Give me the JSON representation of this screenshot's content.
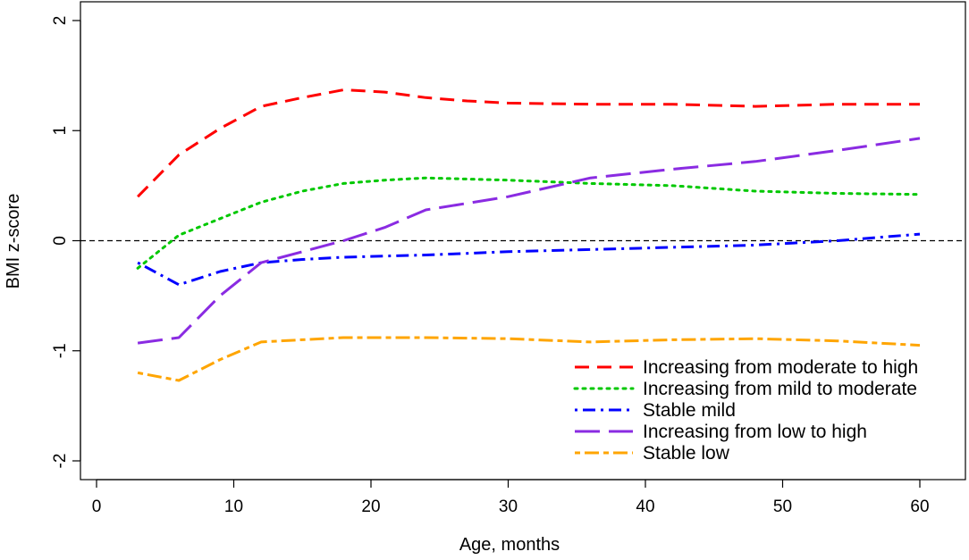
{
  "chart_data": {
    "type": "line",
    "title": "",
    "xlabel": "Age, months",
    "ylabel": "BMI z-score",
    "xlim": [
      0,
      60
    ],
    "ylim": [
      -2,
      2
    ],
    "x_ticks": [
      "0",
      "10",
      "20",
      "30",
      "40",
      "50",
      "60"
    ],
    "y_ticks": [
      "-2",
      "-1",
      "0",
      "1",
      "2"
    ],
    "reference_line_y": 0,
    "legend_position": "bottom-right",
    "series": [
      {
        "name": "Increasing from moderate to high",
        "color": "#ff0000",
        "dash": "dashed",
        "points": [
          [
            3,
            0.4
          ],
          [
            6,
            0.78
          ],
          [
            9,
            1.02
          ],
          [
            12,
            1.22
          ],
          [
            15,
            1.3
          ],
          [
            18,
            1.37
          ],
          [
            21,
            1.35
          ],
          [
            24,
            1.3
          ],
          [
            27,
            1.27
          ],
          [
            30,
            1.25
          ],
          [
            36,
            1.24
          ],
          [
            42,
            1.24
          ],
          [
            48,
            1.22
          ],
          [
            54,
            1.24
          ],
          [
            60,
            1.24
          ]
        ]
      },
      {
        "name": "Increasing from mild to moderate",
        "color": "#00c800",
        "dash": "dotted",
        "points": [
          [
            3,
            -0.25
          ],
          [
            6,
            0.05
          ],
          [
            9,
            0.2
          ],
          [
            12,
            0.35
          ],
          [
            15,
            0.45
          ],
          [
            18,
            0.52
          ],
          [
            21,
            0.55
          ],
          [
            24,
            0.57
          ],
          [
            30,
            0.55
          ],
          [
            36,
            0.52
          ],
          [
            42,
            0.5
          ],
          [
            48,
            0.45
          ],
          [
            54,
            0.43
          ],
          [
            60,
            0.42
          ]
        ]
      },
      {
        "name": "Stable mild",
        "color": "#0000ff",
        "dash": "dotdash",
        "points": [
          [
            3,
            -0.2
          ],
          [
            6,
            -0.4
          ],
          [
            9,
            -0.28
          ],
          [
            12,
            -0.2
          ],
          [
            15,
            -0.17
          ],
          [
            18,
            -0.15
          ],
          [
            24,
            -0.13
          ],
          [
            30,
            -0.1
          ],
          [
            36,
            -0.08
          ],
          [
            42,
            -0.06
          ],
          [
            48,
            -0.04
          ],
          [
            54,
            0.0
          ],
          [
            60,
            0.06
          ]
        ]
      },
      {
        "name": "Increasing from low to high",
        "color": "#8a2be2",
        "dash": "longdash",
        "points": [
          [
            3,
            -0.93
          ],
          [
            6,
            -0.88
          ],
          [
            9,
            -0.5
          ],
          [
            12,
            -0.2
          ],
          [
            15,
            -0.1
          ],
          [
            18,
            0.0
          ],
          [
            21,
            0.12
          ],
          [
            24,
            0.28
          ],
          [
            30,
            0.4
          ],
          [
            36,
            0.57
          ],
          [
            42,
            0.65
          ],
          [
            48,
            0.72
          ],
          [
            54,
            0.82
          ],
          [
            60,
            0.93
          ]
        ]
      },
      {
        "name": "Stable low",
        "color": "#ffa500",
        "dash": "twodash",
        "points": [
          [
            3,
            -1.2
          ],
          [
            6,
            -1.27
          ],
          [
            9,
            -1.08
          ],
          [
            12,
            -0.92
          ],
          [
            15,
            -0.9
          ],
          [
            18,
            -0.88
          ],
          [
            24,
            -0.88
          ],
          [
            30,
            -0.89
          ],
          [
            36,
            -0.92
          ],
          [
            42,
            -0.9
          ],
          [
            48,
            -0.89
          ],
          [
            54,
            -0.91
          ],
          [
            60,
            -0.95
          ]
        ]
      }
    ]
  }
}
